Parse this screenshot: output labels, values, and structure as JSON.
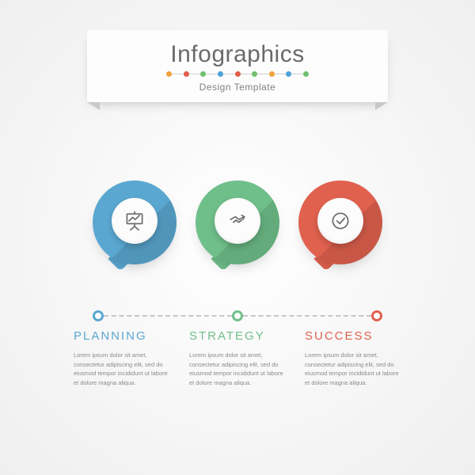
{
  "infographic": {
    "type": "infographic",
    "background_gradient": [
      "#ffffff",
      "#f6f6f6",
      "#efefef"
    ],
    "header": {
      "title": "Infographics",
      "subtitle": "Design Template",
      "title_fontsize": 30,
      "title_color": "#6a6a6a",
      "subtitle_fontsize": 12,
      "subtitle_color": "#808080",
      "ribbon_bg": "#fdfdfd",
      "divider_dots": [
        "#f0a23c",
        "#e25b4a",
        "#6fbf6f",
        "#4aa3d9",
        "#e25b4a",
        "#6fbf6f",
        "#f0a23c",
        "#4aa3d9",
        "#6fbf6f"
      ]
    },
    "steps": [
      {
        "label": "PLANNING",
        "color": "#5aa7d1",
        "icon": "presentation-chart",
        "copy": "Lorem ipsum dolor sit amet, consectetur adipiscing elit, sed do eiusmod tempor incididunt ut labore et dolore magna aliqua."
      },
      {
        "label": "STRATEGY",
        "color": "#6fbf8a",
        "icon": "handshake-arrow",
        "copy": "Lorem ipsum dolor sit amet, consectetur adipiscing elit, sed do eiusmod tempor incididunt ut labore et dolore magna aliqua."
      },
      {
        "label": "SUCCESS",
        "color": "#e0614e",
        "icon": "check-circle",
        "copy": "Lorem ipsum dolor sit amet, consectetur adipiscing elit, sed do eiusmod tempor incididunt ut labore et dolore magna aliqua."
      }
    ],
    "styling": {
      "bubble_diameter": 106,
      "inner_circle_diameter": 58,
      "inner_circle_bg": "#fcfcfc",
      "long_shadow_opacity": 0.1,
      "timeline_dash_color": "#c7c7c7",
      "timeline_dot_border_width": 3,
      "label_fontsize": 15,
      "label_letter_spacing": 2,
      "copy_fontsize": 7.5,
      "copy_color": "#8a8a8a",
      "icon_stroke": "#6f6f6f"
    }
  }
}
